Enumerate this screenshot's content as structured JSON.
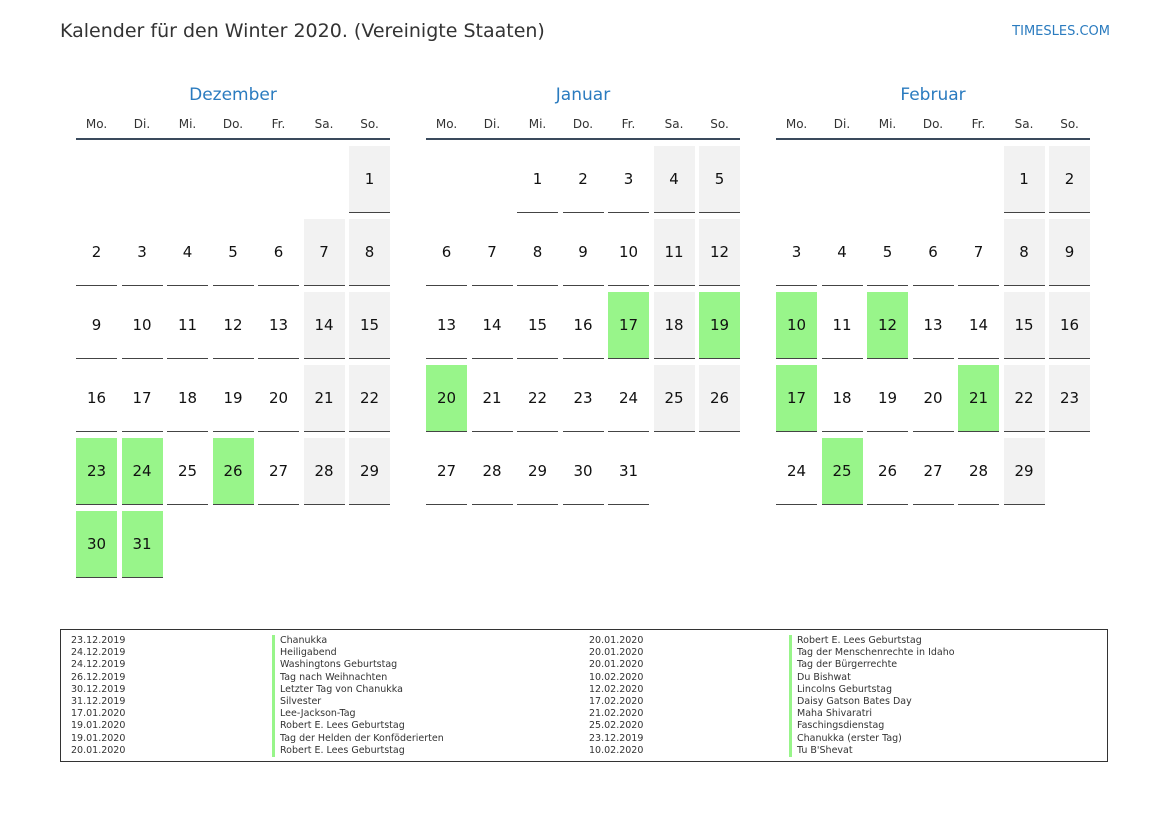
{
  "header": {
    "title": "Kalender für den Winter 2020. (Vereinigte Staaten)",
    "site": "TIMESLES.COM"
  },
  "weekdays": [
    "Mo.",
    "Di.",
    "Mi.",
    "Do.",
    "Fr.",
    "Sa.",
    "So."
  ],
  "colors": {
    "holiday": "#98f58a",
    "weekend": "#f2f2f2",
    "accent": "#2a7bbf"
  },
  "months": [
    {
      "name": "Dezember",
      "offset": 6,
      "days": 31,
      "holidays": [
        23,
        24,
        26,
        30,
        31
      ]
    },
    {
      "name": "Januar",
      "offset": 2,
      "days": 31,
      "holidays": [
        17,
        19,
        20
      ]
    },
    {
      "name": "Februar",
      "offset": 5,
      "days": 29,
      "holidays": [
        10,
        12,
        17,
        21,
        25
      ]
    }
  ],
  "holiday_list": {
    "left": [
      {
        "date": "23.12.2019",
        "name": "Chanukka"
      },
      {
        "date": "24.12.2019",
        "name": "Heiligabend"
      },
      {
        "date": "24.12.2019",
        "name": "Washingtons Geburtstag"
      },
      {
        "date": "26.12.2019",
        "name": "Tag nach Weihnachten"
      },
      {
        "date": "30.12.2019",
        "name": "Letzter Tag von Chanukka"
      },
      {
        "date": "31.12.2019",
        "name": "Silvester"
      },
      {
        "date": "17.01.2020",
        "name": "Lee-Jackson-Tag"
      },
      {
        "date": "19.01.2020",
        "name": "Robert E. Lees Geburtstag"
      },
      {
        "date": "19.01.2020",
        "name": "Tag der Helden der Konföderierten"
      },
      {
        "date": "20.01.2020",
        "name": "Robert E. Lees Geburtstag"
      }
    ],
    "right": [
      {
        "date": "20.01.2020",
        "name": "Robert E. Lees Geburtstag"
      },
      {
        "date": "20.01.2020",
        "name": "Tag der Menschenrechte in Idaho"
      },
      {
        "date": "20.01.2020",
        "name": "Tag der Bürgerrechte"
      },
      {
        "date": "10.02.2020",
        "name": "Du Bishwat"
      },
      {
        "date": "12.02.2020",
        "name": "Lincolns Geburtstag"
      },
      {
        "date": "17.02.2020",
        "name": "Daisy Gatson Bates Day"
      },
      {
        "date": "21.02.2020",
        "name": "Maha Shivaratri"
      },
      {
        "date": "25.02.2020",
        "name": "Faschingsdienstag"
      },
      {
        "date": "23.12.2019",
        "name": "Chanukka (erster Tag)"
      },
      {
        "date": "10.02.2020",
        "name": "Tu B'Shevat"
      }
    ]
  }
}
